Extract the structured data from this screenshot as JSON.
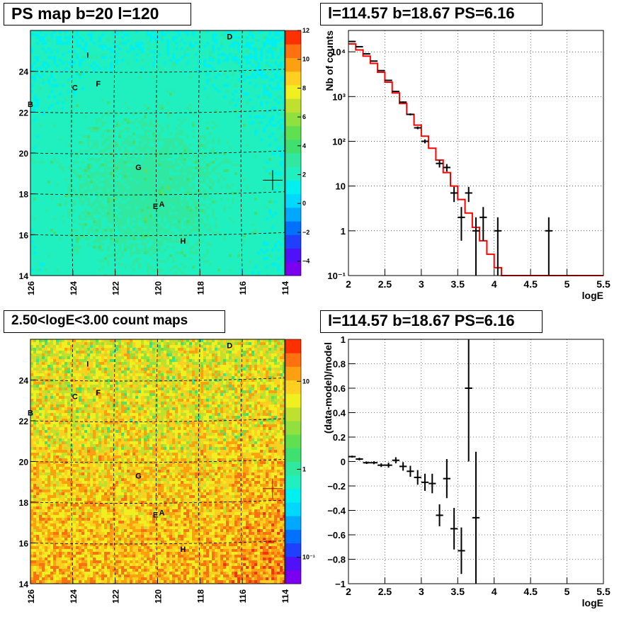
{
  "panels": {
    "ps_map": {
      "title": "PS map b=20 l=120",
      "x_ticks": [
        "126",
        "124",
        "122",
        "120",
        "118",
        "116",
        "114"
      ],
      "y_ticks": [
        "14",
        "16",
        "18",
        "20",
        "22",
        "24"
      ],
      "colorbar_ticks": [
        "12",
        "10",
        "8",
        "6",
        "4",
        "2",
        "0",
        "−2",
        "−4"
      ],
      "source_labels": [
        "D",
        "I",
        "F",
        "C",
        "B",
        "G",
        "A",
        "E",
        "H"
      ]
    },
    "count_map": {
      "title": "2.50<logE<3.00 count maps",
      "x_ticks": [
        "126",
        "124",
        "122",
        "120",
        "118",
        "116",
        "114"
      ],
      "y_ticks": [
        "14",
        "16",
        "18",
        "20",
        "22",
        "24"
      ],
      "colorbar_ticks": [
        "10",
        "1",
        "10⁻¹"
      ],
      "source_labels": [
        "D",
        "I",
        "F",
        "C",
        "B",
        "G",
        "A",
        "E",
        "H"
      ]
    },
    "spectrum": {
      "title": "l=114.57 b=18.67 PS=6.16",
      "xlabel": "logE",
      "ylabel": "Nb of counts",
      "x_ticks": [
        "2",
        "2.5",
        "3",
        "3.5",
        "4",
        "4.5",
        "5",
        "5.5"
      ],
      "y_ticks": [
        "10⁻¹",
        "1",
        "10",
        "10²",
        "10³",
        "10⁴"
      ]
    },
    "residual": {
      "title": "l=114.57 b=18.67 PS=6.16",
      "xlabel": "logE",
      "ylabel": "(data-model)/model",
      "x_ticks": [
        "2",
        "2.5",
        "3",
        "3.5",
        "4",
        "4.5",
        "5",
        "5.5"
      ],
      "y_ticks": [
        "−1",
        "−0.8",
        "−0.6",
        "−0.4",
        "−0.2",
        "0",
        "0.2",
        "0.4",
        "0.6",
        "0.8",
        "1"
      ]
    }
  },
  "chart_data": [
    {
      "type": "heatmap",
      "title": "PS map b=20 l=120",
      "x_axis": "galactic longitude l (reversed)",
      "xlim": [
        126,
        114
      ],
      "ylim": [
        14,
        26
      ],
      "zlim": [
        -5,
        12
      ],
      "colorscale": "rainbow (violet-blue-cyan-green-yellow-orange-red)",
      "dominant_value_range": [
        0,
        3
      ],
      "marker": {
        "l": 114.57,
        "b": 18.67
      },
      "sources": [
        {
          "label": "D",
          "l": 116.6,
          "b": 25.7
        },
        {
          "label": "I",
          "l": 123.3,
          "b": 24.8
        },
        {
          "label": "F",
          "l": 122.8,
          "b": 23.4
        },
        {
          "label": "C",
          "l": 123.9,
          "b": 23.2
        },
        {
          "label": "B",
          "l": 126.0,
          "b": 22.4
        },
        {
          "label": "G",
          "l": 120.9,
          "b": 19.3
        },
        {
          "label": "A",
          "l": 119.8,
          "b": 17.5
        },
        {
          "label": "E",
          "l": 120.1,
          "b": 17.4
        },
        {
          "label": "H",
          "l": 118.8,
          "b": 15.7
        }
      ]
    },
    {
      "type": "heatmap",
      "title": "2.50<logE<3.00 count maps",
      "xlim": [
        126,
        114
      ],
      "ylim": [
        14,
        26
      ],
      "zscale": "log",
      "zlim": [
        0.05,
        30
      ],
      "colorscale": "rainbow",
      "marker": {
        "l": 114.57,
        "b": 18.67
      },
      "sources": [
        {
          "label": "D",
          "l": 116.6,
          "b": 25.7
        },
        {
          "label": "I",
          "l": 123.3,
          "b": 24.8
        },
        {
          "label": "F",
          "l": 122.8,
          "b": 23.4
        },
        {
          "label": "C",
          "l": 123.9,
          "b": 23.2
        },
        {
          "label": "B",
          "l": 126.0,
          "b": 22.4
        },
        {
          "label": "G",
          "l": 120.9,
          "b": 19.3
        },
        {
          "label": "A",
          "l": 119.8,
          "b": 17.5
        },
        {
          "label": "E",
          "l": 120.1,
          "b": 17.4
        },
        {
          "label": "H",
          "l": 118.8,
          "b": 15.7
        }
      ]
    },
    {
      "type": "line",
      "title": "l=114.57 b=18.67 PS=6.16",
      "xlabel": "logE",
      "ylabel": "Nb of counts",
      "xlim": [
        2,
        5.5
      ],
      "ylim": [
        0.1,
        30000
      ],
      "y_scale": "log",
      "grid": true,
      "bin_width": 0.1,
      "model_histogram": {
        "x_start": 2.0,
        "values": [
          15000,
          11000,
          8000,
          5500,
          3500,
          2100,
          1200,
          700,
          400,
          230,
          130,
          70,
          38,
          20,
          10,
          5,
          2.5,
          1.2,
          0.6,
          0.3,
          0.15,
          0.1,
          0.1,
          0.1,
          0.1,
          0.1,
          0.1,
          0.1,
          0.1,
          0.1,
          0.1,
          0.1,
          0.1,
          0.1,
          0.1
        ],
        "color": "#ff0000"
      },
      "data_points": [
        {
          "x": 2.05,
          "y": 17000,
          "ylo": 16870,
          "yhi": 17130
        },
        {
          "x": 2.15,
          "y": 13000,
          "ylo": 12886,
          "yhi": 13114
        },
        {
          "x": 2.25,
          "y": 9000,
          "ylo": 8905,
          "yhi": 9095
        },
        {
          "x": 2.35,
          "y": 6200,
          "ylo": 6121,
          "yhi": 6279
        },
        {
          "x": 2.45,
          "y": 3800,
          "ylo": 3738,
          "yhi": 3862
        },
        {
          "x": 2.55,
          "y": 2300,
          "ylo": 2252,
          "yhi": 2348
        },
        {
          "x": 2.65,
          "y": 1300,
          "ylo": 1264,
          "yhi": 1336
        },
        {
          "x": 2.75,
          "y": 750,
          "ylo": 723,
          "yhi": 777
        },
        {
          "x": 2.85,
          "y": 400,
          "ylo": 380,
          "yhi": 420
        },
        {
          "x": 2.95,
          "y": 200,
          "ylo": 186,
          "yhi": 214
        },
        {
          "x": 3.05,
          "y": 100,
          "ylo": 90,
          "yhi": 110
        },
        {
          "x": 3.25,
          "y": 32,
          "ylo": 26,
          "yhi": 38
        },
        {
          "x": 3.35,
          "y": 26,
          "ylo": 21,
          "yhi": 31
        },
        {
          "x": 3.45,
          "y": 7,
          "ylo": 4.4,
          "yhi": 9.6
        },
        {
          "x": 3.55,
          "y": 2,
          "ylo": 0.6,
          "yhi": 3.4
        },
        {
          "x": 3.65,
          "y": 7,
          "ylo": 4.4,
          "yhi": 9.6
        },
        {
          "x": 3.75,
          "y": 1,
          "ylo": 0.1,
          "yhi": 2.0
        },
        {
          "x": 3.85,
          "y": 2,
          "ylo": 0.6,
          "yhi": 3.4
        },
        {
          "x": 4.05,
          "y": 1,
          "ylo": 0.1,
          "yhi": 2.0
        },
        {
          "x": 4.75,
          "y": 1,
          "ylo": 0.1,
          "yhi": 2.0
        }
      ]
    },
    {
      "type": "scatter",
      "title": "l=114.57 b=18.67 PS=6.16",
      "xlabel": "logE",
      "ylabel": "(data-model)/model",
      "xlim": [
        2,
        5.5
      ],
      "ylim": [
        -1,
        1
      ],
      "grid": true,
      "points": [
        {
          "x": 2.05,
          "y": 0.04,
          "err": 0.008
        },
        {
          "x": 2.15,
          "y": 0.02,
          "err": 0.01
        },
        {
          "x": 2.25,
          "y": -0.01,
          "err": 0.01
        },
        {
          "x": 2.35,
          "y": -0.01,
          "err": 0.012
        },
        {
          "x": 2.45,
          "y": -0.03,
          "err": 0.015
        },
        {
          "x": 2.55,
          "y": -0.03,
          "err": 0.02
        },
        {
          "x": 2.65,
          "y": 0.01,
          "err": 0.025
        },
        {
          "x": 2.75,
          "y": -0.04,
          "err": 0.035
        },
        {
          "x": 2.85,
          "y": -0.08,
          "err": 0.045
        },
        {
          "x": 2.95,
          "y": -0.13,
          "err": 0.06
        },
        {
          "x": 3.05,
          "y": -0.17,
          "err": 0.07
        },
        {
          "x": 3.15,
          "y": -0.18,
          "err": 0.08
        },
        {
          "x": 3.25,
          "y": -0.44,
          "err": 0.09
        },
        {
          "x": 3.35,
          "y": -0.14,
          "err": 0.16
        },
        {
          "x": 3.45,
          "y": -0.55,
          "err": 0.17
        },
        {
          "x": 3.55,
          "y": -0.73,
          "err": 0.19
        },
        {
          "x": 3.65,
          "y": 0.6,
          "err": 0.6
        },
        {
          "x": 3.75,
          "y": -0.46,
          "err": 0.54
        }
      ]
    }
  ]
}
